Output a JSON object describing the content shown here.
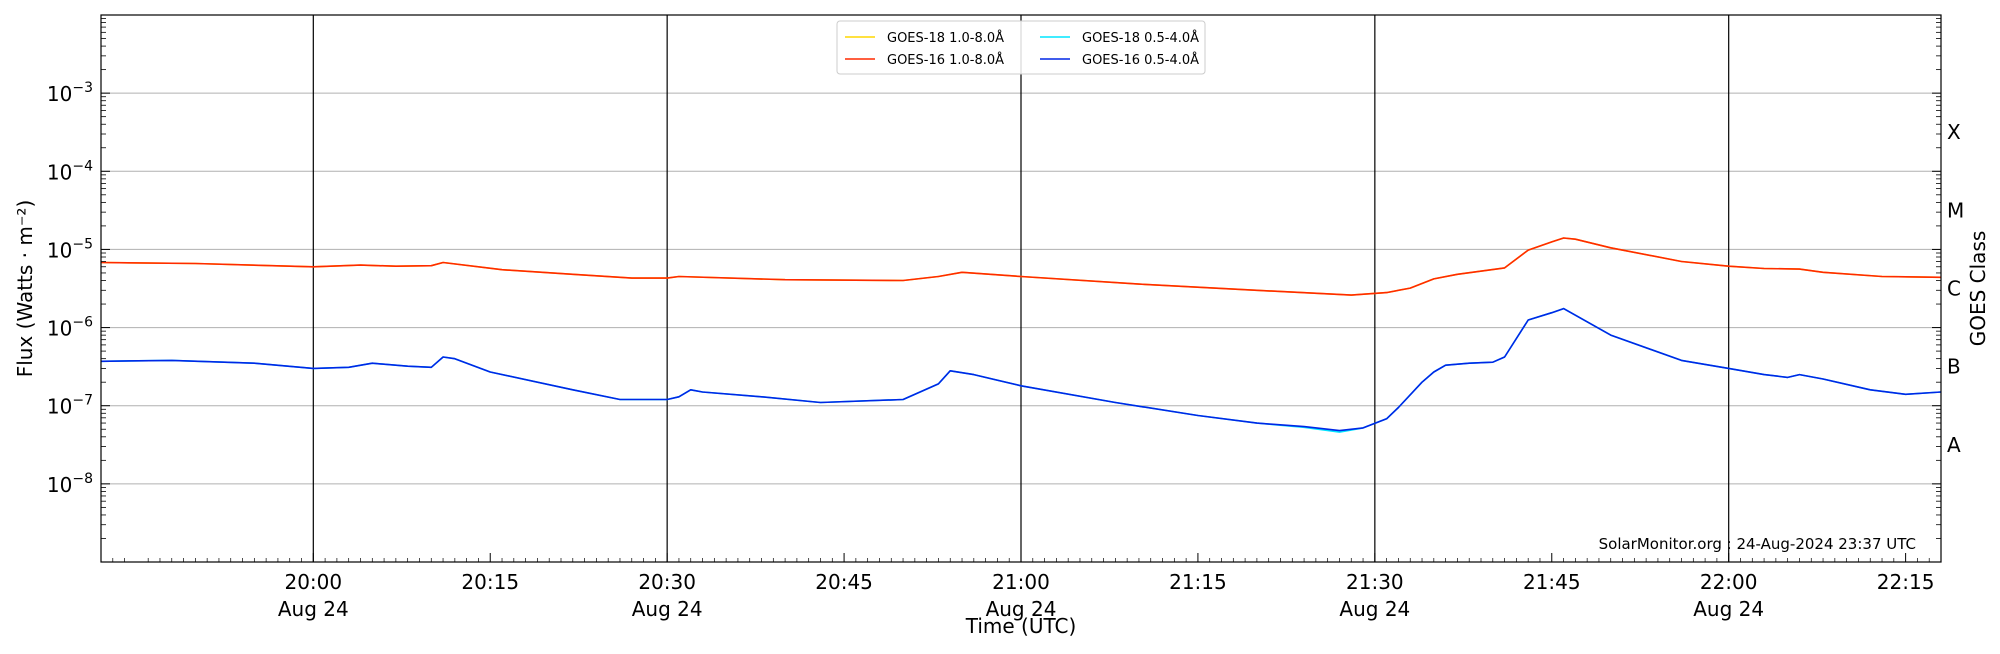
{
  "chart_data": {
    "type": "line",
    "title": "",
    "xlabel": "Time (UTC)",
    "ylabel": "Flux (Watts · m⁻²)",
    "y2label": "GOES Class",
    "yscale": "log",
    "xlim": [
      "19:42",
      "22:18"
    ],
    "ylim": [
      1e-09,
      0.01
    ],
    "grid": "horizontal at decades",
    "legend_position": "top-center",
    "credit": "SolarMonitor.org : 24-Aug-2024 23:37 UTC",
    "x_ticks": [
      {
        "time": "20:00",
        "label": "20:00",
        "sublabel": "Aug 24"
      },
      {
        "time": "20:15",
        "label": "20:15",
        "sublabel": ""
      },
      {
        "time": "20:30",
        "label": "20:30",
        "sublabel": "Aug 24"
      },
      {
        "time": "20:45",
        "label": "20:45",
        "sublabel": ""
      },
      {
        "time": "21:00",
        "label": "21:00",
        "sublabel": "Aug 24"
      },
      {
        "time": "21:15",
        "label": "21:15",
        "sublabel": ""
      },
      {
        "time": "21:30",
        "label": "21:30",
        "sublabel": "Aug 24"
      },
      {
        "time": "21:45",
        "label": "21:45",
        "sublabel": ""
      },
      {
        "time": "22:00",
        "label": "22:00",
        "sublabel": "Aug 24"
      },
      {
        "time": "22:15",
        "label": "22:15",
        "sublabel": ""
      }
    ],
    "day_boundaries": [
      "20:00",
      "20:30",
      "21:00",
      "21:30",
      "22:00"
    ],
    "y_ticks": [
      {
        "exp": -8,
        "label": "10",
        "sup": "−8"
      },
      {
        "exp": -7,
        "label": "10",
        "sup": "−7"
      },
      {
        "exp": -6,
        "label": "10",
        "sup": "−6"
      },
      {
        "exp": -5,
        "label": "10",
        "sup": "−5"
      },
      {
        "exp": -4,
        "label": "10",
        "sup": "−4"
      },
      {
        "exp": -3,
        "label": "10",
        "sup": "−3"
      }
    ],
    "goes_classes": [
      {
        "label": "A",
        "exp": -7.5
      },
      {
        "label": "B",
        "exp": -6.5
      },
      {
        "label": "C",
        "exp": -5.5
      },
      {
        "label": "M",
        "exp": -4.5
      },
      {
        "label": "X",
        "exp": -3.5
      }
    ],
    "series": [
      {
        "name": "GOES-18 1.0-8.0Å",
        "color": "#ffd700",
        "x": [
          "19:42",
          "19:50",
          "20:00",
          "20:04",
          "20:07",
          "20:10",
          "20:11",
          "20:16",
          "20:22",
          "20:27",
          "20:30",
          "20:31",
          "20:40",
          "20:50",
          "20:53",
          "20:55",
          "21:00",
          "21:10",
          "21:20",
          "21:28",
          "21:31",
          "21:33",
          "21:35",
          "21:37",
          "21:41",
          "21:43",
          "21:45",
          "21:46",
          "21:47",
          "21:50",
          "21:56",
          "22:00",
          "22:03",
          "22:06",
          "22:08",
          "22:13",
          "22:18"
        ],
        "y": [
          6.8e-06,
          6.6e-06,
          6e-06,
          6.3e-06,
          6.1e-06,
          6.2e-06,
          6.8e-06,
          5.5e-06,
          4.8e-06,
          4.3e-06,
          4.3e-06,
          4.5e-06,
          4.1e-06,
          4e-06,
          4.5e-06,
          5.1e-06,
          4.5e-06,
          3.6e-06,
          3e-06,
          2.6e-06,
          2.8e-06,
          3.2e-06,
          4.2e-06,
          4.8e-06,
          5.8e-06,
          9.8e-06,
          1.25e-05,
          1.4e-05,
          1.35e-05,
          1.05e-05,
          7e-06,
          6.1e-06,
          5.7e-06,
          5.6e-06,
          5.1e-06,
          4.5e-06,
          4.4e-06
        ]
      },
      {
        "name": "GOES-18 0.5-4.0Å",
        "color": "#00e5ff",
        "x": [
          "19:42",
          "19:48",
          "19:55",
          "20:00",
          "20:03",
          "20:05",
          "20:08",
          "20:10",
          "20:11",
          "20:12",
          "20:15",
          "20:22",
          "20:26",
          "20:30",
          "20:31",
          "20:32",
          "20:33",
          "20:38",
          "20:43",
          "20:50",
          "20:53",
          "20:54",
          "20:56",
          "21:00",
          "21:08",
          "21:15",
          "21:20",
          "21:24",
          "21:27",
          "21:29",
          "21:31",
          "21:32",
          "21:34",
          "21:35",
          "21:36",
          "21:38",
          "21:40",
          "21:41",
          "21:43",
          "21:45",
          "21:46",
          "21:50",
          "21:56",
          "22:00",
          "22:03",
          "22:05",
          "22:06",
          "22:08",
          "22:12",
          "22:15",
          "22:18"
        ],
        "y": [
          3.7e-07,
          3.8e-07,
          3.5e-07,
          3e-07,
          3.1e-07,
          3.5e-07,
          3.2e-07,
          3.1e-07,
          4.2e-07,
          4e-07,
          2.7e-07,
          1.6e-07,
          1.2e-07,
          1.2e-07,
          1.3e-07,
          1.6e-07,
          1.5e-07,
          1.3e-07,
          1.1e-07,
          1.2e-07,
          1.9e-07,
          2.8e-07,
          2.5e-07,
          1.8e-07,
          1.1e-07,
          7.5e-08,
          6e-08,
          5.3e-08,
          4.6e-08,
          5.2e-08,
          6.8e-08,
          9.5e-08,
          2e-07,
          2.7e-07,
          3.3e-07,
          3.5e-07,
          3.6e-07,
          4.2e-07,
          1.25e-06,
          1.55e-06,
          1.75e-06,
          8e-07,
          3.8e-07,
          3e-07,
          2.5e-07,
          2.3e-07,
          2.5e-07,
          2.2e-07,
          1.6e-07,
          1.4e-07,
          1.5e-07
        ]
      },
      {
        "name": "GOES-16 1.0-8.0Å",
        "color": "#ff2a00",
        "x": [
          "19:42",
          "19:50",
          "20:00",
          "20:04",
          "20:07",
          "20:10",
          "20:11",
          "20:16",
          "20:22",
          "20:27",
          "20:30",
          "20:31",
          "20:40",
          "20:50",
          "20:53",
          "20:55",
          "21:00",
          "21:10",
          "21:20",
          "21:28",
          "21:31",
          "21:33",
          "21:35",
          "21:37",
          "21:41",
          "21:43",
          "21:45",
          "21:46",
          "21:47",
          "21:50",
          "21:56",
          "22:00",
          "22:03",
          "22:06",
          "22:08",
          "22:13",
          "22:18"
        ],
        "y": [
          6.8e-06,
          6.6e-06,
          6e-06,
          6.3e-06,
          6.1e-06,
          6.2e-06,
          6.8e-06,
          5.5e-06,
          4.8e-06,
          4.3e-06,
          4.3e-06,
          4.5e-06,
          4.1e-06,
          4e-06,
          4.5e-06,
          5.1e-06,
          4.5e-06,
          3.6e-06,
          3e-06,
          2.6e-06,
          2.8e-06,
          3.2e-06,
          4.2e-06,
          4.8e-06,
          5.8e-06,
          9.8e-06,
          1.25e-05,
          1.4e-05,
          1.35e-05,
          1.05e-05,
          7e-06,
          6.1e-06,
          5.7e-06,
          5.6e-06,
          5.1e-06,
          4.5e-06,
          4.4e-06
        ]
      },
      {
        "name": "GOES-16 0.5-4.0Å",
        "color": "#0026e6",
        "x": [
          "19:42",
          "19:48",
          "19:55",
          "20:00",
          "20:03",
          "20:05",
          "20:08",
          "20:10",
          "20:11",
          "20:12",
          "20:15",
          "20:22",
          "20:26",
          "20:30",
          "20:31",
          "20:32",
          "20:33",
          "20:38",
          "20:43",
          "20:50",
          "20:53",
          "20:54",
          "20:56",
          "21:00",
          "21:08",
          "21:15",
          "21:20",
          "21:24",
          "21:27",
          "21:29",
          "21:31",
          "21:32",
          "21:34",
          "21:35",
          "21:36",
          "21:38",
          "21:40",
          "21:41",
          "21:43",
          "21:45",
          "21:46",
          "21:50",
          "21:56",
          "22:00",
          "22:03",
          "22:05",
          "22:06",
          "22:08",
          "22:12",
          "22:15",
          "22:18"
        ],
        "y": [
          3.7e-07,
          3.8e-07,
          3.5e-07,
          3e-07,
          3.1e-07,
          3.5e-07,
          3.2e-07,
          3.1e-07,
          4.2e-07,
          4e-07,
          2.7e-07,
          1.6e-07,
          1.2e-07,
          1.2e-07,
          1.3e-07,
          1.6e-07,
          1.5e-07,
          1.3e-07,
          1.1e-07,
          1.2e-07,
          1.9e-07,
          2.8e-07,
          2.5e-07,
          1.8e-07,
          1.1e-07,
          7.5e-08,
          6e-08,
          5.4e-08,
          4.8e-08,
          5.2e-08,
          6.8e-08,
          9.5e-08,
          2e-07,
          2.7e-07,
          3.3e-07,
          3.5e-07,
          3.6e-07,
          4.2e-07,
          1.25e-06,
          1.55e-06,
          1.75e-06,
          8e-07,
          3.8e-07,
          3e-07,
          2.5e-07,
          2.3e-07,
          2.5e-07,
          2.2e-07,
          1.6e-07,
          1.4e-07,
          1.5e-07
        ]
      }
    ],
    "legend_order": [
      0,
      1,
      2,
      3
    ]
  }
}
